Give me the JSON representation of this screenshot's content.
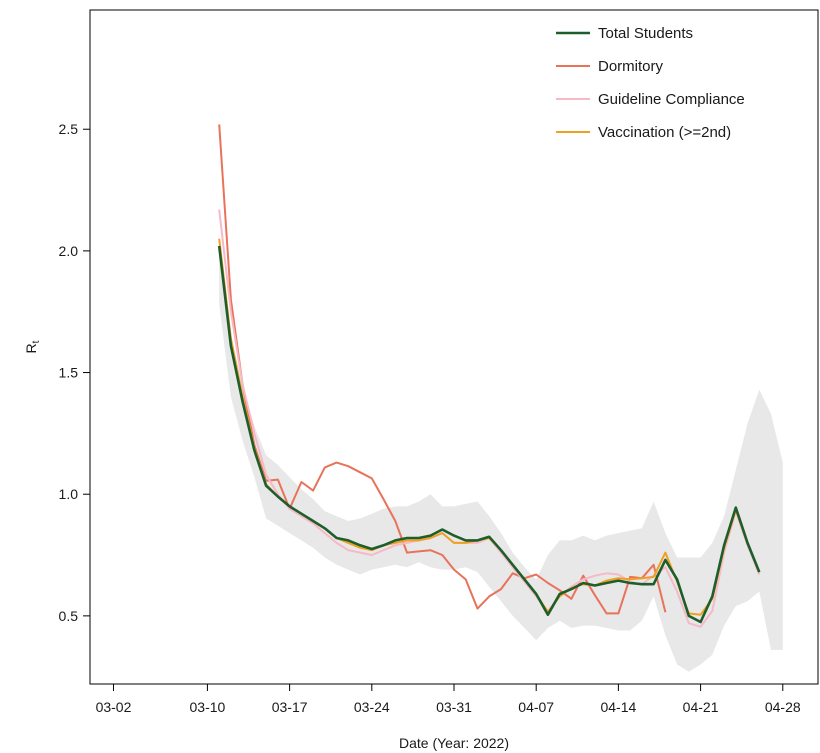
{
  "chart_data": {
    "type": "line",
    "xlabel": "Date (Year: 2022)",
    "ylabel": "R",
    "ylabel_subscript": "t",
    "x_ticks": [
      "03-02",
      "03-10",
      "03-17",
      "03-24",
      "03-31",
      "04-07",
      "04-14",
      "04-21",
      "04-28"
    ],
    "y_ticks": [
      "0.5",
      "1.0",
      "1.5",
      "2.0",
      "2.5"
    ],
    "ylim": [
      0.22,
      2.99
    ],
    "xlim": [
      "2022-02-28",
      "2022-05-01"
    ],
    "grid": false,
    "legend_position": "top-right",
    "x": [
      "2022-03-11",
      "2022-03-12",
      "2022-03-13",
      "2022-03-14",
      "2022-03-15",
      "2022-03-16",
      "2022-03-17",
      "2022-03-18",
      "2022-03-19",
      "2022-03-20",
      "2022-03-21",
      "2022-03-22",
      "2022-03-23",
      "2022-03-24",
      "2022-03-25",
      "2022-03-26",
      "2022-03-27",
      "2022-03-28",
      "2022-03-29",
      "2022-03-30",
      "2022-03-31",
      "2022-04-01",
      "2022-04-02",
      "2022-04-03",
      "2022-04-04",
      "2022-04-05",
      "2022-04-06",
      "2022-04-07",
      "2022-04-08",
      "2022-04-09",
      "2022-04-10",
      "2022-04-11",
      "2022-04-12",
      "2022-04-13",
      "2022-04-14",
      "2022-04-15",
      "2022-04-16",
      "2022-04-17",
      "2022-04-18",
      "2022-04-19",
      "2022-04-20",
      "2022-04-21",
      "2022-04-22",
      "2022-04-23",
      "2022-04-24",
      "2022-04-25",
      "2022-04-26",
      "2022-04-27",
      "2022-04-28"
    ],
    "band": {
      "color": "#e8e8e8",
      "upper": [
        2.05,
        1.65,
        1.45,
        1.28,
        1.16,
        1.12,
        1.07,
        1.02,
        0.98,
        0.93,
        0.91,
        0.89,
        0.9,
        0.92,
        0.94,
        0.95,
        0.95,
        0.97,
        1.0,
        0.95,
        0.95,
        0.96,
        0.97,
        0.91,
        0.84,
        0.76,
        0.7,
        0.65,
        0.75,
        0.81,
        0.81,
        0.83,
        0.81,
        0.83,
        0.84,
        0.85,
        0.86,
        0.97,
        0.84,
        0.74,
        0.74,
        0.74,
        0.8,
        0.91,
        1.1,
        1.29,
        1.43,
        1.33,
        1.13
      ],
      "lower": [
        1.78,
        1.4,
        1.22,
        1.07,
        0.9,
        0.87,
        0.84,
        0.81,
        0.78,
        0.74,
        0.71,
        0.69,
        0.67,
        0.69,
        0.7,
        0.71,
        0.7,
        0.72,
        0.7,
        0.69,
        0.69,
        0.7,
        0.68,
        0.62,
        0.56,
        0.5,
        0.45,
        0.4,
        0.45,
        0.48,
        0.45,
        0.46,
        0.46,
        0.45,
        0.44,
        0.44,
        0.48,
        0.58,
        0.42,
        0.3,
        0.27,
        0.3,
        0.34,
        0.46,
        0.54,
        0.56,
        0.6,
        0.36,
        0.36
      ]
    },
    "series": [
      {
        "name": "Total Students",
        "color": "#1e5e2a",
        "values": [
          2.02,
          1.61,
          1.38,
          1.18,
          1.035,
          0.99,
          0.95,
          0.92,
          0.89,
          0.86,
          0.82,
          0.81,
          0.79,
          0.775,
          0.79,
          0.81,
          0.82,
          0.82,
          0.83,
          0.855,
          0.83,
          0.81,
          0.81,
          0.825,
          0.77,
          0.71,
          0.65,
          0.59,
          0.505,
          0.59,
          0.61,
          0.635,
          0.625,
          0.635,
          0.645,
          0.635,
          0.63,
          0.63,
          0.73,
          0.65,
          0.5,
          0.475,
          0.58,
          0.79,
          0.945,
          0.8,
          0.68,
          null,
          null
        ]
      },
      {
        "name": "Dormitory",
        "color": "#e8735a",
        "values": [
          2.52,
          1.8,
          1.45,
          1.2,
          1.055,
          1.06,
          0.94,
          1.05,
          1.015,
          1.11,
          1.13,
          1.115,
          1.09,
          1.065,
          0.98,
          0.89,
          0.76,
          0.765,
          0.77,
          0.75,
          0.69,
          0.65,
          0.53,
          0.58,
          0.61,
          0.675,
          0.655,
          0.67,
          0.635,
          0.605,
          0.57,
          0.665,
          0.585,
          0.51,
          0.51,
          0.66,
          0.655,
          0.71,
          0.515,
          null,
          null,
          null,
          null,
          null,
          null,
          null,
          null,
          null,
          null
        ]
      },
      {
        "name": "Guideline Compliance",
        "color": "#f7b8c8",
        "values": [
          2.17,
          1.75,
          1.45,
          1.25,
          1.08,
          1.0,
          0.94,
          0.91,
          0.88,
          0.84,
          0.8,
          0.77,
          0.76,
          0.75,
          0.77,
          0.79,
          0.8,
          0.81,
          0.82,
          0.84,
          0.8,
          0.8,
          0.8,
          0.82,
          0.76,
          0.7,
          0.64,
          0.58,
          0.52,
          0.58,
          0.62,
          0.65,
          0.665,
          0.675,
          0.67,
          0.64,
          0.63,
          0.665,
          0.7,
          0.6,
          0.47,
          0.455,
          0.52,
          0.76,
          0.93,
          0.79,
          0.67,
          null,
          null
        ]
      },
      {
        "name": "Vaccination (>=2nd)",
        "color": "#f0a020",
        "values": [
          2.05,
          1.64,
          1.4,
          1.19,
          1.04,
          0.99,
          0.95,
          0.92,
          0.89,
          0.86,
          0.82,
          0.8,
          0.78,
          0.77,
          0.79,
          0.8,
          0.81,
          0.81,
          0.82,
          0.84,
          0.8,
          0.8,
          0.81,
          0.82,
          0.77,
          0.71,
          0.65,
          0.59,
          0.515,
          0.58,
          0.615,
          0.63,
          0.625,
          0.645,
          0.655,
          0.65,
          0.655,
          0.66,
          0.76,
          0.64,
          0.51,
          0.505,
          0.57,
          0.78,
          0.935,
          0.8,
          0.68,
          null,
          null
        ]
      }
    ]
  }
}
